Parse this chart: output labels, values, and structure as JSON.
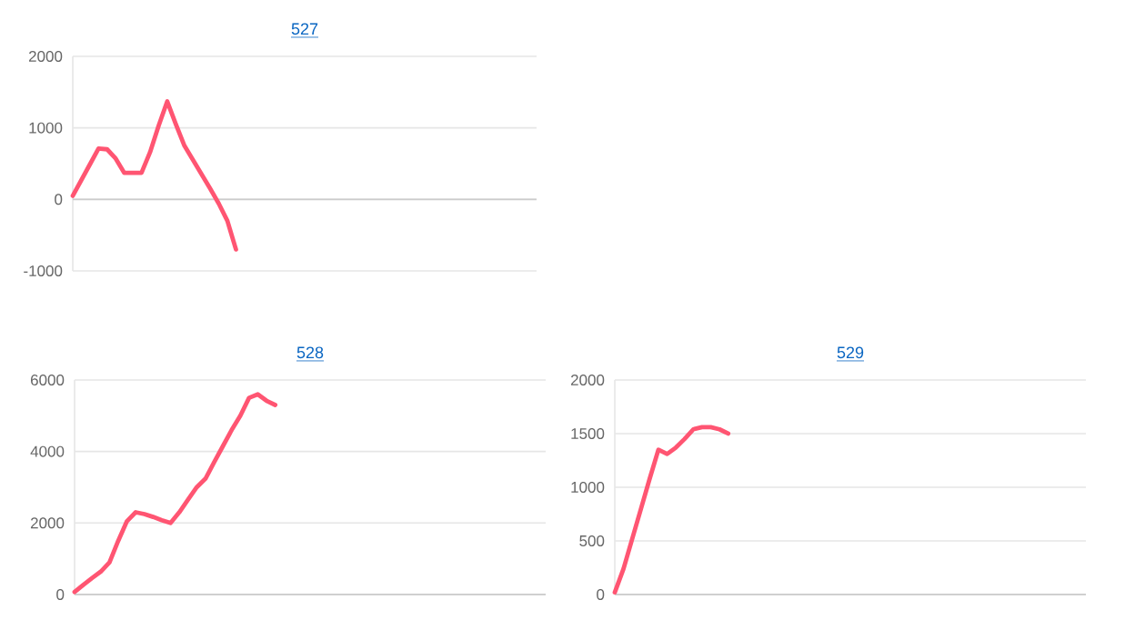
{
  "chart_data": [
    {
      "type": "line",
      "title": "527",
      "categories": [
        null,
        null,
        null,
        null,
        null,
        null,
        null,
        null,
        null,
        null,
        null,
        null,
        null,
        null,
        null,
        null,
        null,
        null,
        null,
        null,
        null,
        null,
        null,
        null,
        null,
        null,
        null,
        null,
        null,
        null,
        null,
        null,
        null,
        null,
        null,
        null,
        null,
        null,
        null,
        null,
        null,
        null,
        null,
        null,
        null,
        null,
        null,
        null,
        null,
        null,
        null,
        null,
        null,
        null,
        null
      ],
      "series": [
        {
          "color": "#ff5572",
          "values": [
            50,
            270,
            490,
            710,
            700,
            570,
            370,
            370,
            370,
            660,
            1030,
            1370,
            1050,
            750,
            550,
            350,
            150,
            -60,
            -300,
            -700,
            null,
            null,
            null,
            null,
            null,
            null,
            null,
            null,
            null,
            null,
            null,
            null,
            null,
            null,
            null,
            null,
            null,
            null,
            null,
            null,
            null,
            null,
            null,
            null,
            null,
            null,
            null,
            null,
            null,
            null,
            null,
            null,
            null,
            null,
            null
          ]
        }
      ],
      "ylim": [
        -1000,
        2000
      ],
      "yticks": [
        -1000,
        0,
        1000,
        2000
      ],
      "grid": "y",
      "tick_labels": "y"
    },
    {
      "type": "line",
      "title": "528",
      "categories": [
        null,
        null,
        null,
        null,
        null,
        null,
        null,
        null,
        null,
        null,
        null,
        null,
        null,
        null,
        null,
        null,
        null,
        null,
        null,
        null,
        null,
        null,
        null,
        null,
        null,
        null,
        null,
        null,
        null,
        null,
        null,
        null,
        null,
        null,
        null,
        null,
        null,
        null,
        null,
        null,
        null,
        null,
        null,
        null,
        null,
        null,
        null,
        null,
        null,
        null,
        null,
        null,
        null,
        null,
        null
      ],
      "series": [
        {
          "color": "#ff5572",
          "values": [
            70,
            270,
            460,
            640,
            900,
            1500,
            2050,
            2300,
            2250,
            2170,
            2080,
            2000,
            2300,
            2650,
            3000,
            3240,
            3700,
            4150,
            4600,
            5000,
            5500,
            5600,
            5420,
            5300,
            null,
            null,
            null,
            null,
            null,
            null,
            null,
            null,
            null,
            null,
            null,
            null,
            null,
            null,
            null,
            null,
            null,
            null,
            null,
            null,
            null,
            null,
            null,
            null,
            null,
            null,
            null,
            null,
            null,
            null,
            null
          ]
        }
      ],
      "ylim": [
        0,
        6000
      ],
      "yticks": [
        0,
        2000,
        4000,
        6000
      ],
      "grid": "y",
      "tick_labels": "y"
    },
    {
      "type": "line",
      "title": "529",
      "categories": [
        null,
        null,
        null,
        null,
        null,
        null,
        null,
        null,
        null,
        null,
        null,
        null,
        null,
        null,
        null,
        null,
        null,
        null,
        null,
        null,
        null,
        null,
        null,
        null,
        null,
        null,
        null,
        null,
        null,
        null,
        null,
        null,
        null,
        null,
        null,
        null,
        null,
        null,
        null,
        null,
        null,
        null,
        null,
        null,
        null,
        null,
        null,
        null,
        null,
        null,
        null,
        null,
        null,
        null,
        null
      ],
      "series": [
        {
          "color": "#ff5572",
          "values": [
            20,
            240,
            520,
            800,
            1080,
            1350,
            1310,
            1370,
            1450,
            1540,
            1560,
            1560,
            1540,
            1500,
            null,
            null,
            null,
            null,
            null,
            null,
            null,
            null,
            null,
            null,
            null,
            null,
            null,
            null,
            null,
            null,
            null,
            null,
            null,
            null,
            null,
            null,
            null,
            null,
            null,
            null,
            null,
            null,
            null,
            null,
            null,
            null,
            null,
            null,
            null,
            null,
            null,
            null,
            null,
            null,
            null
          ]
        }
      ],
      "ylim": [
        0,
        2000
      ],
      "yticks": [
        0,
        500,
        1000,
        1500,
        2000
      ],
      "grid": "y",
      "tick_labels": "y"
    }
  ]
}
